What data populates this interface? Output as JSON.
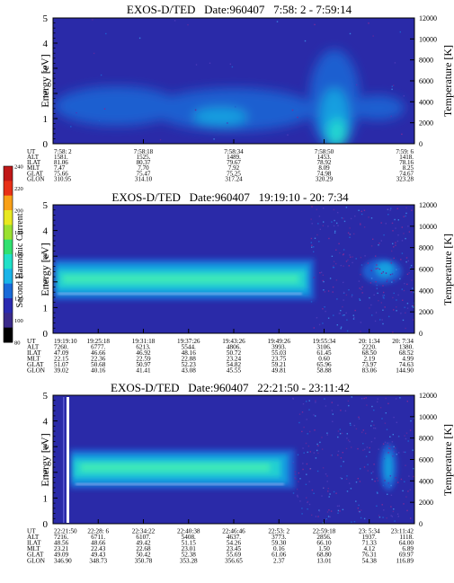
{
  "colors": {
    "background": "#2a2aa8",
    "axis": "#000000",
    "colorbar": [
      "#000000",
      "#3a2a8a",
      "#2a2ab0",
      "#1a6ad8",
      "#19b4e8",
      "#20e0c8",
      "#30e070",
      "#9ae030",
      "#e8e820",
      "#f8a018",
      "#e83018",
      "#c01818"
    ]
  },
  "colorbar": {
    "label": "Second Harmonic Current",
    "ticks": [
      "80",
      "100",
      "120",
      "140",
      "160",
      "180",
      "200",
      "220",
      "240"
    ]
  },
  "chart_data": [
    {
      "type": "heatmap",
      "title": "EXOS-D/TED   Date:960407   7:58: 2 - 7:59:14",
      "ylabel": "Energy [eV]",
      "y2label": "Temperature [K]",
      "ylim": [
        0,
        5
      ],
      "y2lim": [
        0,
        12000
      ],
      "yticks": [
        "0",
        "1",
        "2",
        "3",
        "4",
        "5"
      ],
      "y2ticks": [
        "0",
        "2000",
        "4000",
        "6000",
        "8000",
        "10000",
        "12000"
      ],
      "row_labels": [
        "UT",
        "ALT",
        "ILAT",
        "MLT",
        "GLAT",
        "GLON"
      ],
      "columns": [
        [
          "7:58: 2",
          "1581.",
          "81.06",
          "7.47",
          "75.66",
          "310.95"
        ],
        [
          "7:58:18",
          "1525.",
          "80.37",
          "7.70",
          "75.47",
          "314.10"
        ],
        [
          "7:58:34",
          "1489.",
          "79.67",
          "7.92",
          "75.25",
          "317.24"
        ],
        [
          "7:58:50",
          "1453.",
          "78.92",
          "8.09",
          "74.98",
          "320.29"
        ],
        [
          "7:59: 6",
          "1418.",
          "78.16",
          "8.25",
          "74.67",
          "323.28"
        ]
      ]
    },
    {
      "type": "heatmap",
      "title": "EXOS-D/TED   Date:960407   19:19:10 - 20: 7:34",
      "ylabel": "Energy [eV]",
      "y2label": "Temperature [K]",
      "ylim": [
        0,
        5
      ],
      "y2lim": [
        0,
        12000
      ],
      "yticks": [
        "0",
        "1",
        "2",
        "3",
        "4",
        "5"
      ],
      "y2ticks": [
        "0",
        "2000",
        "4000",
        "6000",
        "8000",
        "10000",
        "12000"
      ],
      "row_labels": [
        "UT",
        "ALT",
        "ILAT",
        "MLT",
        "GLAT",
        "GLON"
      ],
      "columns": [
        [
          "19:19:10",
          "7260.",
          "47.09",
          "22.15",
          "51.07",
          "39.02"
        ],
        [
          "19:25:18",
          "6777.",
          "46.66",
          "22.36",
          "50.68",
          "40.16"
        ],
        [
          "19:31:18",
          "6213.",
          "46.92",
          "22.59",
          "50.97",
          "41.41"
        ],
        [
          "19:37:26",
          "5544.",
          "48.16",
          "22.88",
          "52.23",
          "43.08"
        ],
        [
          "19:43:26",
          "4806.",
          "50.72",
          "23.24",
          "54.82",
          "45.55"
        ],
        [
          "19:49:26",
          "3993.",
          "55.03",
          "23.75",
          "59.21",
          "49.81"
        ],
        [
          "19:55:34",
          "3106.",
          "61.45",
          "0.60",
          "65.96",
          "58.88"
        ],
        [
          "20: 1:34",
          "2220.",
          "68.50",
          "2.19",
          "73.97",
          "83.06"
        ],
        [
          "20: 7:34",
          "1380.",
          "68.52",
          "4.99",
          "74.63",
          "144.90"
        ]
      ]
    },
    {
      "type": "heatmap",
      "title": "EXOS-D/TED   Date:960407   22:21:50 - 23:11:42",
      "ylabel": "Energy [eV]",
      "y2label": "Temperature [K]",
      "ylim": [
        0,
        5
      ],
      "y2lim": [
        0,
        12000
      ],
      "yticks": [
        "0",
        "1",
        "2",
        "3",
        "4",
        "5"
      ],
      "y2ticks": [
        "0",
        "2000",
        "4000",
        "6000",
        "8000",
        "10000",
        "12000"
      ],
      "row_labels": [
        "UT",
        "ALT",
        "ILAT",
        "MLT",
        "GLAT",
        "GLON"
      ],
      "columns": [
        [
          "22:21:50",
          "7216.",
          "48.56",
          "23.21",
          "49.09",
          "346.90"
        ],
        [
          "22:28: 6",
          "6711.",
          "48.66",
          "22.43",
          "49.43",
          "348.73"
        ],
        [
          "22:34:22",
          "6107.",
          "49.42",
          "22.68",
          "50.42",
          "350.78"
        ],
        [
          "22:40:38",
          "5408.",
          "51.15",
          "23.01",
          "52.38",
          "353.28"
        ],
        [
          "22:46:46",
          "4637.",
          "54.26",
          "23.45",
          "55.69",
          "356.65"
        ],
        [
          "22:53: 2",
          "3773.",
          "59.30",
          "0.16",
          "61.06",
          "2.37"
        ],
        [
          "22:59:18",
          "2856.",
          "66.10",
          "1.50",
          "68.80",
          "13.01"
        ],
        [
          "23: 5:34",
          "1937.",
          "71.33",
          "4.12",
          "76.31",
          "54.38"
        ],
        [
          "23:11:42",
          "1118.",
          "64.00",
          "6.89",
          "69.97",
          "116.89"
        ]
      ]
    }
  ]
}
